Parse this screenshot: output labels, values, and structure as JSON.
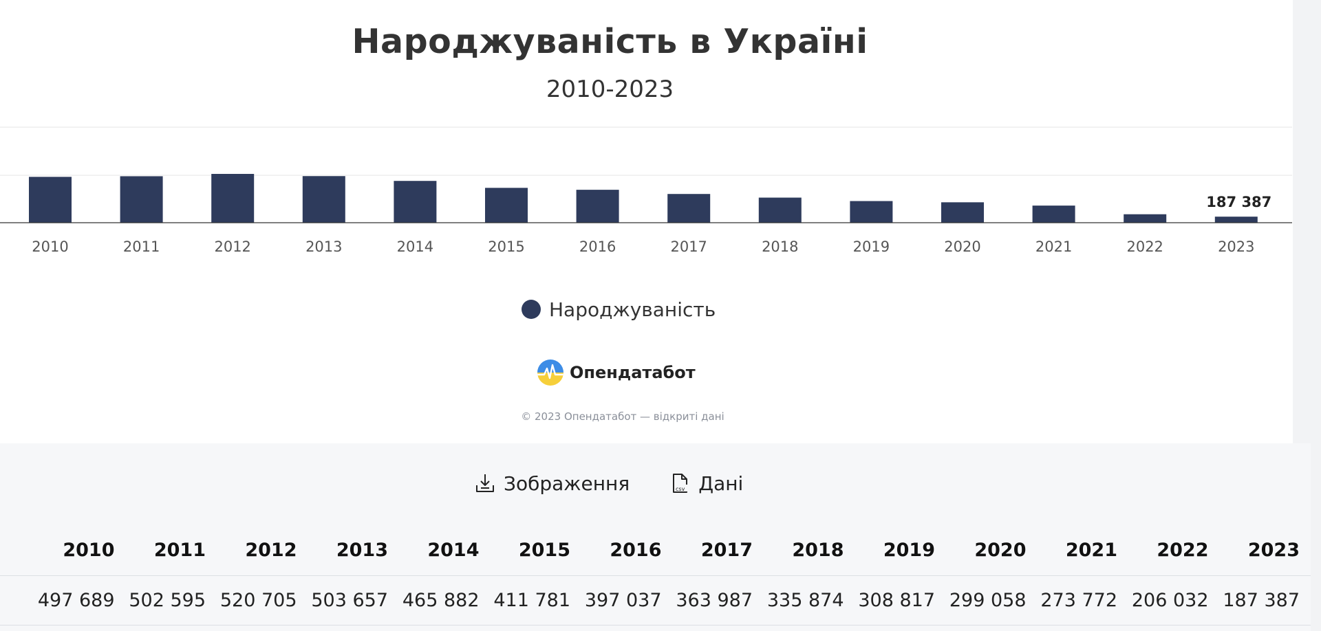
{
  "chart_data": {
    "type": "bar",
    "title": "Народжуваність в Україні",
    "subtitle": "2010-2023",
    "categories": [
      "2010",
      "2011",
      "2012",
      "2013",
      "2014",
      "2015",
      "2016",
      "2017",
      "2018",
      "2019",
      "2020",
      "2021",
      "2022",
      "2023"
    ],
    "series": [
      {
        "name": "Народжуваність",
        "values": [
          497689,
          502595,
          520705,
          503657,
          465882,
          411781,
          397037,
          363987,
          335874,
          308817,
          299058,
          273772,
          206032,
          187387
        ]
      }
    ],
    "data_labels": {
      "2023": "187 387"
    },
    "color": "#2e3b5c",
    "legend": "bottom-center",
    "grid": true
  },
  "legend": {
    "label": "Народжуваність",
    "color": "#2e3b5c"
  },
  "brand": {
    "name": "Опендатабот"
  },
  "credits": "© 2023 Опендатабот — відкриті дані",
  "actions": {
    "image_label": "Зображення",
    "data_label": "Дані"
  },
  "table": {
    "headers": [
      "2010",
      "2011",
      "2012",
      "2013",
      "2014",
      "2015",
      "2016",
      "2017",
      "2018",
      "2019",
      "2020",
      "2021",
      "2022",
      "2023"
    ],
    "rows": [
      [
        "497 689",
        "502 595",
        "520 705",
        "503 657",
        "465 882",
        "411 781",
        "397 037",
        "363 987",
        "335 874",
        "308 817",
        "299 058",
        "273 772",
        "206 032",
        "187 387"
      ]
    ]
  }
}
